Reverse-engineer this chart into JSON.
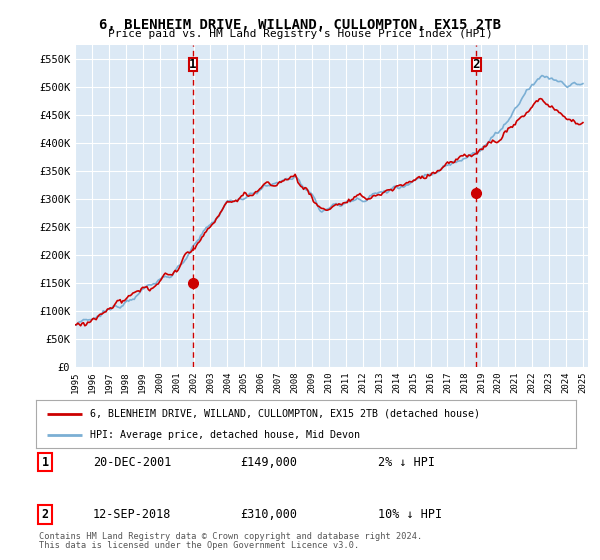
{
  "title": "6, BLENHEIM DRIVE, WILLAND, CULLOMPTON, EX15 2TB",
  "subtitle": "Price paid vs. HM Land Registry's House Price Index (HPI)",
  "ylim": [
    0,
    575000
  ],
  "yticks": [
    0,
    50000,
    100000,
    150000,
    200000,
    250000,
    300000,
    350000,
    400000,
    450000,
    500000,
    550000
  ],
  "ytick_labels": [
    "£0",
    "£50K",
    "£100K",
    "£150K",
    "£200K",
    "£250K",
    "£300K",
    "£350K",
    "£400K",
    "£450K",
    "£500K",
    "£550K"
  ],
  "hpi_color": "#7bafd4",
  "price_color": "#cc0000",
  "vline_color": "#cc0000",
  "chart_bg": "#dce9f5",
  "background_color": "#ffffff",
  "grid_color": "#ffffff",
  "marker1_year": 2001.97,
  "marker1_price": 149000,
  "marker2_year": 2018.71,
  "marker2_price": 310000,
  "legend_line1": "6, BLENHEIM DRIVE, WILLAND, CULLOMPTON, EX15 2TB (detached house)",
  "legend_line2": "HPI: Average price, detached house, Mid Devon",
  "footer1": "Contains HM Land Registry data © Crown copyright and database right 2024.",
  "footer2": "This data is licensed under the Open Government Licence v3.0.",
  "table": [
    {
      "num": "1",
      "date": "20-DEC-2001",
      "price": "£149,000",
      "hpi": "2% ↓ HPI"
    },
    {
      "num": "2",
      "date": "12-SEP-2018",
      "price": "£310,000",
      "hpi": "10% ↓ HPI"
    }
  ]
}
